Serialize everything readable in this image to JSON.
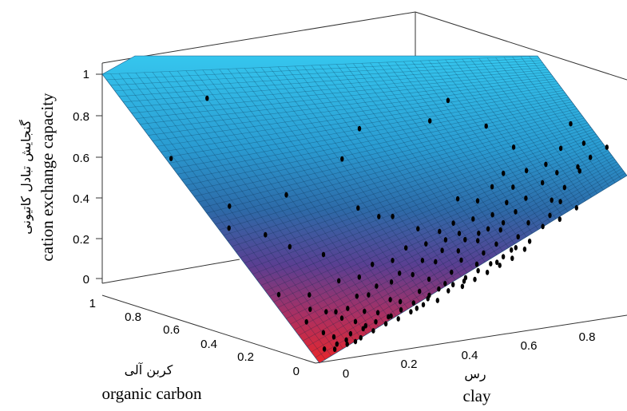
{
  "chart_data": {
    "type": "surface3d",
    "title": "",
    "axes": {
      "x": {
        "label": "clay",
        "label_fa": "رس",
        "ticks": [
          "0",
          "0.2",
          "0.4",
          "0.6",
          "0.8"
        ],
        "range": [
          0,
          1
        ]
      },
      "y": {
        "label": "organic carbon",
        "label_fa": "کربن آلی",
        "ticks": [
          "0",
          "0.2",
          "0.4",
          "0.6",
          "0.8",
          "1"
        ],
        "range": [
          0,
          1
        ]
      },
      "z": {
        "label": "cation exchange capacity",
        "label_fa": "گنجایش تبادل کاتیونی",
        "ticks": [
          "0",
          "0.2",
          "0.4",
          "0.6",
          "0.8",
          "1"
        ],
        "range": [
          0,
          1
        ]
      }
    },
    "surface": {
      "description": "fitted plane",
      "z_at_corners": {
        "x0_y0": 0.0,
        "x1_y0": 0.55,
        "x0_y1": 1.0,
        "x1_y1": 1.0
      },
      "colormap": [
        "#e0222b",
        "#6b3a8c",
        "#2f6fae",
        "#2aa3d6",
        "#33c2ea"
      ]
    },
    "points": [
      [
        0.02,
        0.72,
        0.7
      ],
      [
        0.1,
        0.7,
        0.99
      ],
      [
        0.15,
        0.4,
        0.62
      ],
      [
        0.02,
        0.45,
        0.47
      ],
      [
        0.05,
        0.5,
        0.55
      ],
      [
        0.08,
        0.38,
        0.45
      ],
      [
        0.12,
        0.33,
        0.4
      ],
      [
        0.2,
        0.3,
        0.35
      ],
      [
        0.28,
        0.35,
        0.78
      ],
      [
        0.3,
        0.3,
        0.55
      ],
      [
        0.35,
        0.28,
        0.5
      ],
      [
        0.4,
        0.3,
        0.48
      ],
      [
        0.45,
        0.25,
        0.42
      ],
      [
        0.5,
        0.22,
        0.4
      ],
      [
        0.55,
        0.2,
        0.38
      ],
      [
        0.6,
        0.18,
        0.37
      ],
      [
        0.65,
        0.12,
        0.42
      ],
      [
        0.7,
        0.15,
        0.45
      ],
      [
        0.72,
        0.3,
        0.6
      ],
      [
        0.8,
        0.2,
        0.55
      ],
      [
        0.85,
        0.15,
        0.52
      ],
      [
        0.88,
        0.1,
        0.6
      ],
      [
        0.92,
        0.12,
        0.65
      ],
      [
        0.95,
        0.05,
        0.7
      ],
      [
        0.4,
        0.5,
        0.85
      ],
      [
        0.55,
        0.4,
        0.88
      ],
      [
        0.62,
        0.45,
        0.95
      ],
      [
        0.7,
        0.38,
        0.82
      ],
      [
        0.75,
        0.3,
        0.72
      ],
      [
        0.9,
        0.25,
        0.8
      ],
      [
        0.1,
        0.2,
        0.22
      ],
      [
        0.12,
        0.15,
        0.15
      ],
      [
        0.15,
        0.12,
        0.12
      ],
      [
        0.18,
        0.1,
        0.1
      ],
      [
        0.2,
        0.08,
        0.08
      ],
      [
        0.22,
        0.12,
        0.13
      ],
      [
        0.25,
        0.1,
        0.12
      ],
      [
        0.28,
        0.08,
        0.1
      ],
      [
        0.3,
        0.12,
        0.16
      ],
      [
        0.32,
        0.1,
        0.15
      ],
      [
        0.35,
        0.06,
        0.12
      ],
      [
        0.38,
        0.1,
        0.18
      ],
      [
        0.4,
        0.08,
        0.16
      ],
      [
        0.42,
        0.12,
        0.22
      ],
      [
        0.45,
        0.08,
        0.2
      ],
      [
        0.48,
        0.1,
        0.24
      ],
      [
        0.5,
        0.06,
        0.2
      ],
      [
        0.52,
        0.12,
        0.28
      ],
      [
        0.55,
        0.08,
        0.26
      ],
      [
        0.58,
        0.1,
        0.3
      ],
      [
        0.6,
        0.05,
        0.26
      ],
      [
        0.62,
        0.1,
        0.33
      ],
      [
        0.65,
        0.06,
        0.3
      ],
      [
        0.68,
        0.08,
        0.35
      ],
      [
        0.7,
        0.04,
        0.33
      ],
      [
        0.72,
        0.1,
        0.4
      ],
      [
        0.75,
        0.06,
        0.38
      ],
      [
        0.78,
        0.08,
        0.42
      ],
      [
        0.8,
        0.05,
        0.4
      ],
      [
        0.82,
        0.1,
        0.47
      ],
      [
        0.85,
        0.04,
        0.44
      ],
      [
        0.08,
        0.1,
        0.08
      ],
      [
        0.1,
        0.08,
        0.06
      ],
      [
        0.12,
        0.05,
        0.05
      ],
      [
        0.14,
        0.06,
        0.07
      ],
      [
        0.16,
        0.04,
        0.05
      ],
      [
        0.18,
        0.06,
        0.08
      ],
      [
        0.2,
        0.04,
        0.07
      ],
      [
        0.22,
        0.06,
        0.1
      ],
      [
        0.24,
        0.04,
        0.09
      ],
      [
        0.26,
        0.06,
        0.11
      ],
      [
        0.28,
        0.04,
        0.1
      ],
      [
        0.3,
        0.06,
        0.13
      ],
      [
        0.32,
        0.04,
        0.12
      ],
      [
        0.34,
        0.06,
        0.15
      ],
      [
        0.36,
        0.04,
        0.14
      ],
      [
        0.38,
        0.05,
        0.16
      ],
      [
        0.4,
        0.03,
        0.15
      ],
      [
        0.42,
        0.06,
        0.19
      ],
      [
        0.44,
        0.04,
        0.18
      ],
      [
        0.46,
        0.05,
        0.2
      ],
      [
        0.48,
        0.03,
        0.19
      ],
      [
        0.5,
        0.05,
        0.22
      ],
      [
        0.52,
        0.03,
        0.21
      ],
      [
        0.54,
        0.05,
        0.24
      ],
      [
        0.56,
        0.03,
        0.23
      ],
      [
        0.58,
        0.05,
        0.26
      ],
      [
        0.6,
        0.03,
        0.25
      ],
      [
        0.62,
        0.05,
        0.28
      ],
      [
        0.64,
        0.03,
        0.27
      ],
      [
        0.66,
        0.05,
        0.31
      ],
      [
        0.68,
        0.03,
        0.3
      ],
      [
        0.15,
        0.15,
        0.14
      ],
      [
        0.18,
        0.14,
        0.15
      ],
      [
        0.22,
        0.16,
        0.19
      ],
      [
        0.25,
        0.15,
        0.19
      ],
      [
        0.28,
        0.16,
        0.22
      ],
      [
        0.32,
        0.15,
        0.23
      ],
      [
        0.35,
        0.16,
        0.26
      ],
      [
        0.38,
        0.14,
        0.25
      ],
      [
        0.42,
        0.16,
        0.3
      ],
      [
        0.45,
        0.14,
        0.29
      ],
      [
        0.48,
        0.16,
        0.33
      ],
      [
        0.52,
        0.14,
        0.32
      ],
      [
        0.55,
        0.16,
        0.36
      ],
      [
        0.58,
        0.14,
        0.35
      ],
      [
        0.62,
        0.16,
        0.39
      ],
      [
        0.65,
        0.14,
        0.38
      ],
      [
        0.05,
        0.05,
        0.03
      ],
      [
        0.07,
        0.03,
        0.03
      ],
      [
        0.09,
        0.05,
        0.04
      ],
      [
        0.11,
        0.03,
        0.04
      ],
      [
        0.13,
        0.02,
        0.05
      ],
      [
        0.06,
        0.15,
        0.12
      ],
      [
        0.09,
        0.18,
        0.16
      ],
      [
        0.04,
        0.25,
        0.22
      ],
      [
        0.2,
        0.22,
        0.25
      ],
      [
        0.25,
        0.2,
        0.26
      ],
      [
        0.3,
        0.22,
        0.3
      ],
      [
        0.35,
        0.2,
        0.31
      ],
      [
        0.4,
        0.22,
        0.35
      ],
      [
        0.45,
        0.2,
        0.36
      ],
      [
        0.5,
        0.18,
        0.37
      ],
      [
        0.55,
        0.24,
        0.42
      ],
      [
        0.6,
        0.22,
        0.43
      ],
      [
        0.65,
        0.2,
        0.44
      ],
      [
        0.7,
        0.22,
        0.48
      ],
      [
        0.75,
        0.2,
        0.49
      ],
      [
        0.8,
        0.12,
        0.48
      ],
      [
        0.85,
        0.22,
        0.58
      ],
      [
        0.9,
        0.18,
        0.6
      ],
      [
        0.58,
        0.28,
        0.52
      ],
      [
        0.63,
        0.26,
        0.5
      ],
      [
        0.68,
        0.28,
        0.55
      ],
      [
        0.73,
        0.25,
        0.54
      ],
      [
        0.78,
        0.28,
        0.6
      ],
      [
        0.83,
        0.26,
        0.62
      ],
      [
        0.88,
        0.28,
        0.68
      ],
      [
        0.93,
        0.22,
        0.7
      ]
    ]
  }
}
